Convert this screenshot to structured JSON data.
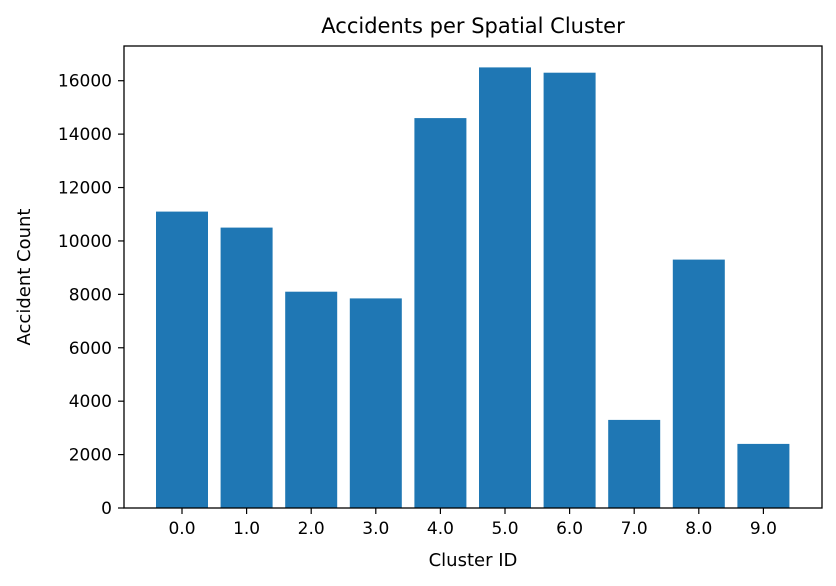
{
  "chart_data": {
    "type": "bar",
    "title": "Accidents per Spatial Cluster",
    "xlabel": "Cluster ID",
    "ylabel": "Accident Count",
    "categories": [
      "0.0",
      "1.0",
      "2.0",
      "3.0",
      "4.0",
      "5.0",
      "6.0",
      "7.0",
      "8.0",
      "9.0"
    ],
    "values": [
      11100,
      10500,
      8100,
      7850,
      14600,
      16500,
      16300,
      3300,
      9300,
      2400
    ],
    "yticks": [
      "0",
      "2000",
      "4000",
      "6000",
      "8000",
      "10000",
      "12000",
      "14000",
      "16000"
    ],
    "ylim": [
      0,
      17300
    ],
    "grid": false,
    "bar_color": "#1f77b4"
  }
}
